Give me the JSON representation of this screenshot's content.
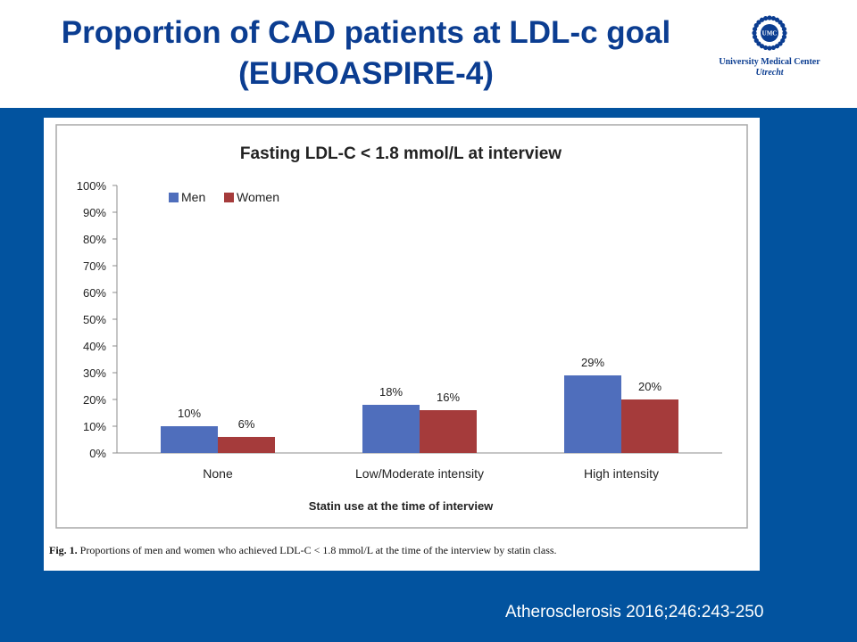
{
  "slide": {
    "title_line1": "Proportion of CAD patients at LDL-c goal",
    "title_line2": "(EUROASPIRE-4)",
    "logo": {
      "badge_text": "UMC",
      "name": "University Medical Center",
      "city": "Utrecht"
    },
    "figure_caption_label": "Fig. 1.",
    "figure_caption": "Proportions of men and women who achieved LDL-C < 1.8 mmol/L at the time of the interview by statin class.",
    "citation": "Atherosclerosis 2016;246:243-250",
    "colors": {
      "title": "#0b3d91",
      "band": "#02539f",
      "men": "#4f6ebc",
      "women": "#a53b3b"
    }
  },
  "chart_data": {
    "type": "bar",
    "title": "Fasting LDL-C < 1.8 mmol/L at interview",
    "xlabel": "Statin use at the time of interview",
    "ylabel": "",
    "categories": [
      "None",
      "Low/Moderate intensity",
      "High intensity"
    ],
    "series": [
      {
        "name": "Men",
        "values": [
          10,
          18,
          29
        ],
        "labels": [
          "10%",
          "18%",
          "29%"
        ],
        "color": "#4f6ebc"
      },
      {
        "name": "Women",
        "values": [
          6,
          16,
          20
        ],
        "labels": [
          "6%",
          "16%",
          "20%"
        ],
        "color": "#a53b3b"
      }
    ],
    "ylim": [
      0,
      100
    ],
    "yticks": [
      "0%",
      "10%",
      "20%",
      "30%",
      "40%",
      "50%",
      "60%",
      "70%",
      "80%",
      "90%",
      "100%"
    ],
    "legend": "top-left",
    "grid": false
  }
}
